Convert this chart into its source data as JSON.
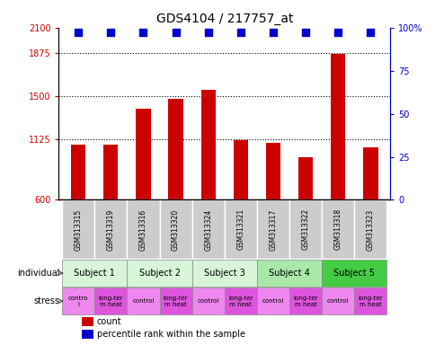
{
  "title": "GDS4104 / 217757_at",
  "samples": [
    "GSM313315",
    "GSM313319",
    "GSM313316",
    "GSM313320",
    "GSM313324",
    "GSM313321",
    "GSM313317",
    "GSM313322",
    "GSM313318",
    "GSM313323"
  ],
  "counts": [
    1080,
    1080,
    1390,
    1480,
    1560,
    1120,
    1100,
    970,
    1870,
    1060
  ],
  "percentile_ranks": [
    97,
    97,
    97,
    97,
    97,
    97,
    97,
    97,
    97,
    97
  ],
  "ylim_left": [
    600,
    2100
  ],
  "yticks_left": [
    600,
    1125,
    1500,
    1875,
    2100
  ],
  "ylim_right": [
    0,
    100
  ],
  "yticks_right": [
    0,
    25,
    50,
    75,
    100
  ],
  "grid_values": [
    1125,
    1500,
    1875
  ],
  "subjects": [
    {
      "label": "Subject 1",
      "start": 0,
      "end": 2,
      "color": "#d8f5d8"
    },
    {
      "label": "Subject 2",
      "start": 2,
      "end": 4,
      "color": "#d8f5d8"
    },
    {
      "label": "Subject 3",
      "start": 4,
      "end": 6,
      "color": "#d8f5d8"
    },
    {
      "label": "Subject 4",
      "start": 6,
      "end": 8,
      "color": "#aae8aa"
    },
    {
      "label": "Subject 5",
      "start": 8,
      "end": 10,
      "color": "#44cc44"
    }
  ],
  "stress": [
    {
      "label": "contro\nl",
      "start": 0,
      "end": 1,
      "color": "#ee88ee"
    },
    {
      "label": "long-ter\nm heat",
      "start": 1,
      "end": 2,
      "color": "#dd55dd"
    },
    {
      "label": "control",
      "start": 2,
      "end": 3,
      "color": "#ee88ee"
    },
    {
      "label": "long-ter\nm heat",
      "start": 3,
      "end": 4,
      "color": "#dd55dd"
    },
    {
      "label": "control",
      "start": 4,
      "end": 5,
      "color": "#ee88ee"
    },
    {
      "label": "long-ter\nm heat",
      "start": 5,
      "end": 6,
      "color": "#dd55dd"
    },
    {
      "label": "control",
      "start": 6,
      "end": 7,
      "color": "#ee88ee"
    },
    {
      "label": "long-ter\nm heat",
      "start": 7,
      "end": 8,
      "color": "#dd55dd"
    },
    {
      "label": "control",
      "start": 8,
      "end": 9,
      "color": "#ee88ee"
    },
    {
      "label": "long-ter\nm heat",
      "start": 9,
      "end": 10,
      "color": "#dd55dd"
    }
  ],
  "bar_color": "#cc0000",
  "dot_color": "#0000cc",
  "bar_width": 0.45,
  "dot_size": 30,
  "left_axis_color": "#cc0000",
  "right_axis_color": "#0000cc",
  "sample_box_color": "#cccccc",
  "label_individual": "individual",
  "label_stress": "stress",
  "bar_bottom": 600
}
